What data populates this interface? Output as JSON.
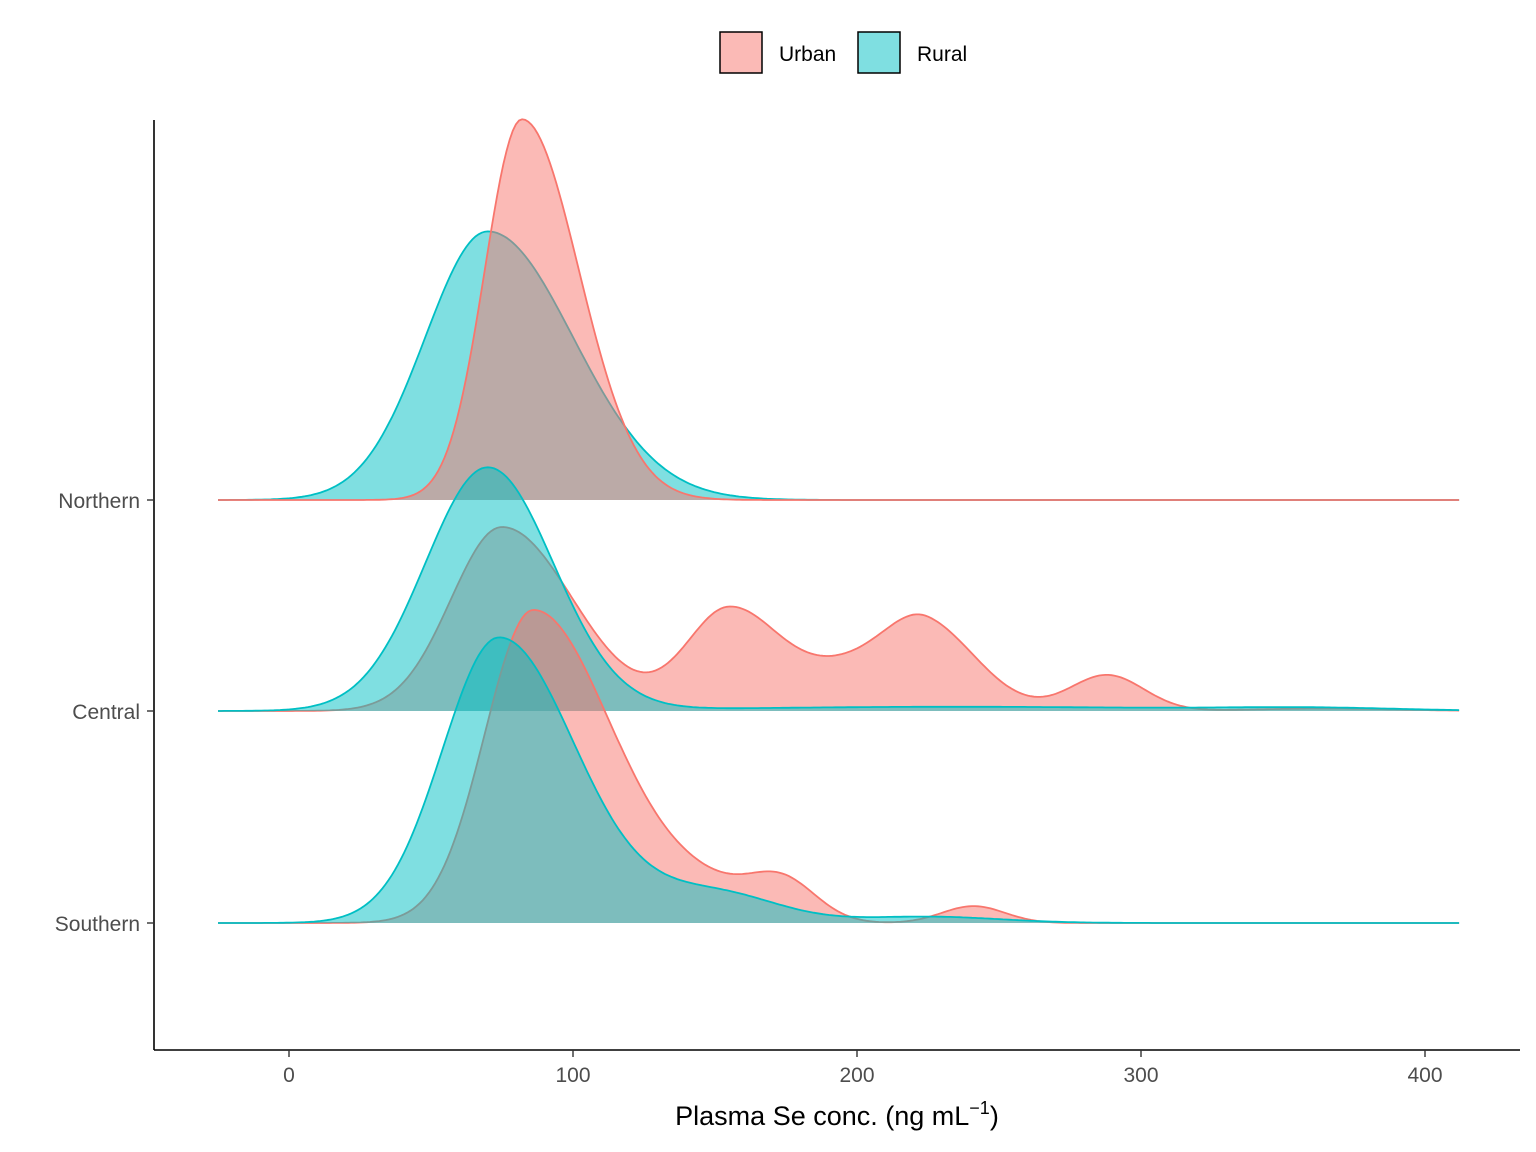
{
  "chart_data": {
    "type": "ridgeline",
    "title": "",
    "xlabel": "Plasma Se conc. (ng  mL",
    "xlabel_superscript": "−1",
    "xlabel_close": ")",
    "ylabel": "",
    "xlim": [
      -48,
      435
    ],
    "x_ticks": [
      0,
      100,
      200,
      300,
      400
    ],
    "x_tick_labels": [
      "0",
      "100",
      "200",
      "300",
      "400"
    ],
    "categories": [
      "Southern",
      "Central",
      "Northern"
    ],
    "grid": false,
    "legend": {
      "position": "top",
      "entries": [
        "Urban",
        "Rural"
      ]
    },
    "colors": {
      "Urban": "#F8766D",
      "Rural": "#00BFC4"
    },
    "fill_alpha": 0.5,
    "density_x_range": [
      -25,
      412
    ],
    "series": [
      {
        "name": "Rural",
        "group": "Northern",
        "peaks": [
          [
            70,
            1.27,
            22,
            30
          ]
        ]
      },
      {
        "name": "Urban",
        "group": "Northern",
        "peaks": [
          [
            82,
            1.8,
            13,
            20
          ]
        ]
      },
      {
        "name": "Urban",
        "group": "Central",
        "peaks": [
          [
            75,
            0.87,
            18,
            25
          ],
          [
            155,
            0.48,
            15,
            18
          ],
          [
            200,
            0.2,
            18,
            18
          ],
          [
            225,
            0.37,
            14,
            18
          ],
          [
            288,
            0.17,
            13,
            13
          ],
          [
            365,
            0.012,
            25,
            25
          ]
        ]
      },
      {
        "name": "Rural",
        "group": "Central",
        "peaks": [
          [
            70,
            1.15,
            22,
            23
          ],
          [
            235,
            0.02,
            80,
            80
          ],
          [
            360,
            0.012,
            30,
            30
          ]
        ]
      },
      {
        "name": "Urban",
        "group": "Southern",
        "peaks": [
          [
            86,
            1.48,
            17,
            28
          ],
          [
            148,
            0.12,
            18,
            18
          ],
          [
            174,
            0.18,
            12,
            12
          ],
          [
            241,
            0.08,
            11,
            11
          ]
        ]
      },
      {
        "name": "Rural",
        "group": "Southern",
        "peaks": [
          [
            74,
            1.35,
            20,
            27
          ],
          [
            150,
            0.14,
            22,
            22
          ],
          [
            225,
            0.03,
            25,
            25
          ]
        ]
      }
    ]
  }
}
